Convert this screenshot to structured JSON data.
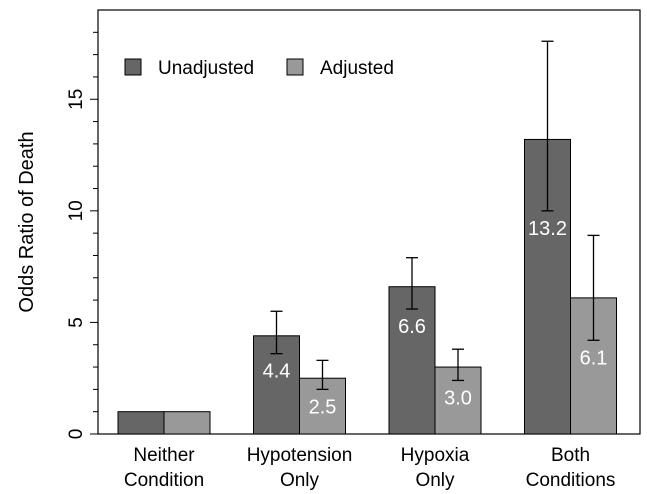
{
  "chart_data": {
    "type": "bar",
    "ylabel": "Odds Ratio of Death",
    "xlabel": "",
    "ylim": [
      0,
      19
    ],
    "yticks": [
      0,
      5,
      10,
      15
    ],
    "grid": false,
    "legend_position": "top-left",
    "categories": [
      [
        "Neither",
        "Condition"
      ],
      [
        "Hypotension",
        "Only"
      ],
      [
        "Hypoxia",
        "Only"
      ],
      [
        "Both",
        "Conditions"
      ]
    ],
    "series": [
      {
        "name": "Unadjusted",
        "color": "#666666",
        "values": [
          1.0,
          4.4,
          6.6,
          13.2
        ],
        "error_low": [
          null,
          3.6,
          5.6,
          10.0
        ],
        "error_high": [
          null,
          5.5,
          7.9,
          17.6
        ],
        "labels": [
          "",
          "4.4",
          "6.6",
          "13.2"
        ]
      },
      {
        "name": "Adjusted",
        "color": "#999999",
        "values": [
          1.0,
          2.5,
          3.0,
          6.1
        ],
        "error_low": [
          null,
          2.0,
          2.4,
          4.2
        ],
        "error_high": [
          null,
          3.3,
          3.8,
          8.9
        ],
        "labels": [
          "",
          "2.5",
          "3.0",
          "6.1"
        ]
      }
    ]
  }
}
